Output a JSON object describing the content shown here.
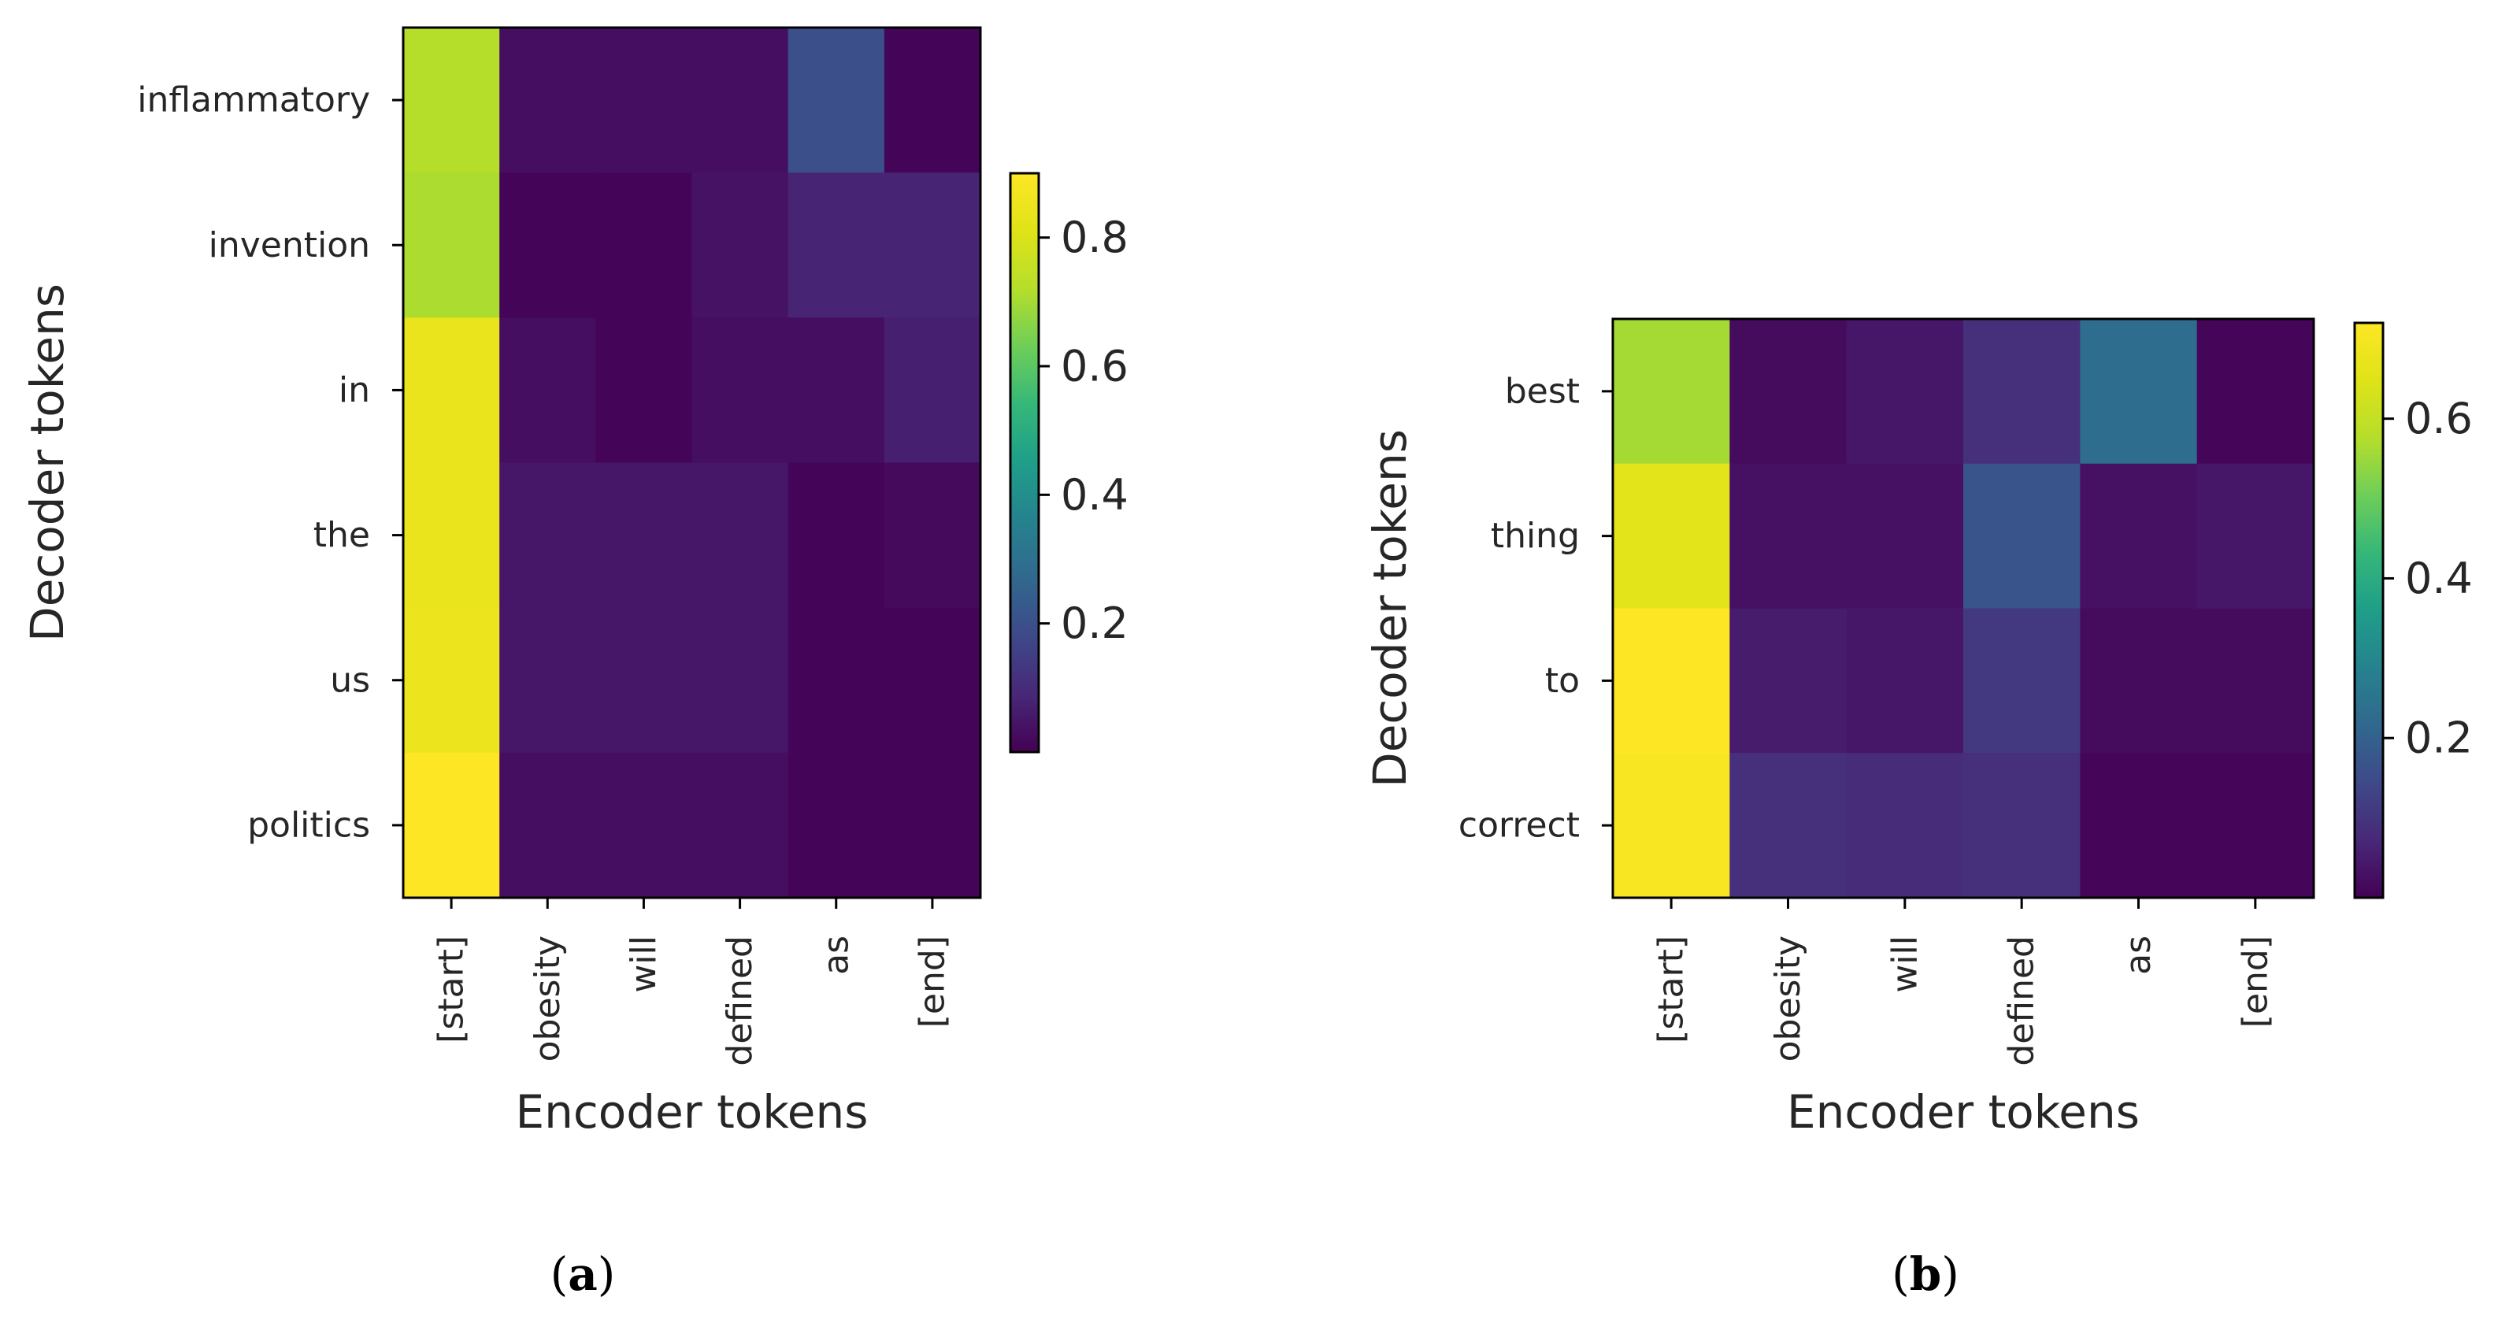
{
  "chart_data": [
    {
      "type": "heatmap",
      "caption_letter": "a",
      "xlabel": "Encoder tokens",
      "ylabel": "Decoder tokens",
      "x_categories": [
        "[start]",
        "obesity",
        "will",
        "defined",
        "as",
        "[end]"
      ],
      "y_categories": [
        "inflammatory",
        "invention",
        "in",
        "the",
        "us",
        "politics"
      ],
      "values": [
        [
          0.72,
          0.03,
          0.03,
          0.03,
          0.2,
          0.01
        ],
        [
          0.71,
          0.01,
          0.01,
          0.04,
          0.08,
          0.08
        ],
        [
          0.84,
          0.03,
          0.01,
          0.03,
          0.03,
          0.07
        ],
        [
          0.84,
          0.05,
          0.05,
          0.05,
          0.01,
          0.02
        ],
        [
          0.85,
          0.05,
          0.05,
          0.05,
          0.01,
          0.01
        ],
        [
          0.9,
          0.03,
          0.03,
          0.03,
          0.01,
          0.01
        ]
      ],
      "colorbar": {
        "range": [
          0.0,
          0.9
        ],
        "ticks": [
          0.2,
          0.4,
          0.6,
          0.8
        ],
        "tick_labels": [
          "0.2",
          "0.4",
          "0.6",
          "0.8"
        ]
      },
      "colormap": "viridis"
    },
    {
      "type": "heatmap",
      "caption_letter": "b",
      "xlabel": "Encoder tokens",
      "ylabel": "Decoder tokens",
      "x_categories": [
        "[start]",
        "obesity",
        "will",
        "defined",
        "as",
        "[end]"
      ],
      "y_categories": [
        "best",
        "thing",
        "to",
        "correct"
      ],
      "values": [
        [
          0.56,
          0.02,
          0.04,
          0.09,
          0.23,
          0.01
        ],
        [
          0.66,
          0.03,
          0.03,
          0.17,
          0.03,
          0.04
        ],
        [
          0.72,
          0.05,
          0.04,
          0.11,
          0.02,
          0.02
        ],
        [
          0.71,
          0.09,
          0.08,
          0.09,
          0.01,
          0.01
        ]
      ],
      "colorbar": {
        "range": [
          0.0,
          0.72
        ],
        "ticks": [
          0.2,
          0.4,
          0.6
        ],
        "tick_labels": [
          "0.2",
          "0.4",
          "0.6"
        ]
      },
      "colormap": "viridis"
    }
  ]
}
